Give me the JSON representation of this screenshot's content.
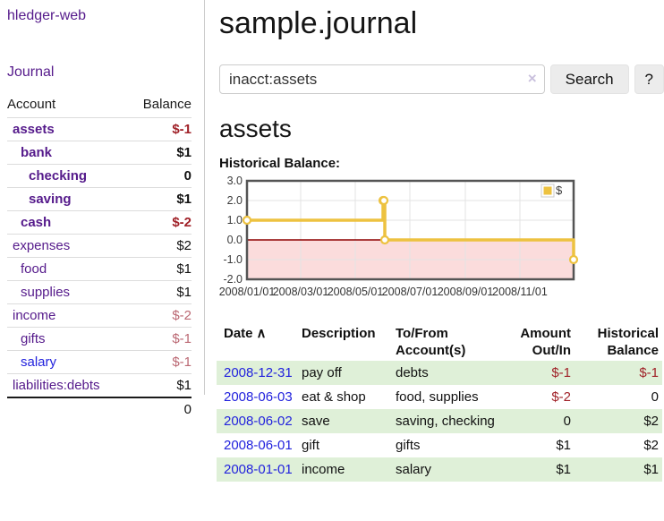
{
  "app": {
    "brand": "hledger-web",
    "nav": {
      "journal_label": "Journal"
    }
  },
  "sidebar": {
    "accounts_header": {
      "account": "Account",
      "balance": "Balance"
    },
    "accounts": [
      {
        "name": "assets",
        "depth": 0,
        "balance": "$-1",
        "bold": true,
        "balance_style": "strong-negative"
      },
      {
        "name": "bank",
        "depth": 1,
        "balance": "$1",
        "bold": true,
        "balance_style": "normal"
      },
      {
        "name": "checking",
        "depth": 2,
        "balance": "0",
        "bold": true,
        "balance_style": "normal"
      },
      {
        "name": "saving",
        "depth": 2,
        "balance": "$1",
        "bold": true,
        "balance_style": "normal"
      },
      {
        "name": "cash",
        "depth": 1,
        "balance": "$-2",
        "bold": true,
        "balance_style": "strong-negative"
      },
      {
        "name": "expenses",
        "depth": 0,
        "balance": "$2",
        "bold": false,
        "balance_style": "normal"
      },
      {
        "name": "food",
        "depth": 1,
        "balance": "$1",
        "bold": false,
        "balance_style": "normal"
      },
      {
        "name": "supplies",
        "depth": 1,
        "balance": "$1",
        "bold": false,
        "balance_style": "normal"
      },
      {
        "name": "income",
        "depth": 0,
        "balance": "$-2",
        "bold": false,
        "balance_style": "soft-negative"
      },
      {
        "name": "gifts",
        "depth": 1,
        "balance": "$-1",
        "bold": false,
        "balance_style": "soft-negative"
      },
      {
        "name": "salary",
        "depth": 1,
        "balance": "$-1",
        "bold": false,
        "balance_style": "soft-negative",
        "link_blue": true
      },
      {
        "name": "liabilities:debts",
        "depth": 0,
        "balance": "$1",
        "bold": false,
        "balance_style": "normal"
      }
    ],
    "total": "0"
  },
  "header": {
    "title": "sample.journal"
  },
  "search": {
    "value": "inacct:assets",
    "clear_icon": "×",
    "button_label": "Search",
    "help_label": "?"
  },
  "account_page": {
    "heading": "assets",
    "chart_heading": "Historical Balance:"
  },
  "chart_data": {
    "type": "line",
    "step": true,
    "title": "Historical Balance:",
    "ylim": [
      -2.0,
      3.0
    ],
    "y_ticks": [
      "3.0",
      "2.0",
      "1.0",
      "0.0",
      "-1.0",
      "-2.0"
    ],
    "y_tick_values": [
      3,
      2,
      1,
      0,
      -1,
      -2
    ],
    "x_ticks": [
      {
        "label": "2008/01/01",
        "day": 0
      },
      {
        "label": "2008/03/01",
        "day": 60
      },
      {
        "label": "2008/05/01",
        "day": 121
      },
      {
        "label": "2008/07/01",
        "day": 182
      },
      {
        "label": "2008/09/01",
        "day": 244
      },
      {
        "label": "2008/11/01",
        "day": 305
      }
    ],
    "days_total": 365,
    "grid": true,
    "legend": {
      "label": "$",
      "position": "top-right"
    },
    "series": [
      {
        "name": "$",
        "color": "#edc240",
        "points": [
          {
            "date": "2008/01/01",
            "day": 0,
            "value": 1
          },
          {
            "date": "2008/06/01",
            "day": 152,
            "value": 2
          },
          {
            "date": "2008/06/02",
            "day": 153,
            "value": 2
          },
          {
            "date": "2008/06/03",
            "day": 154,
            "value": 0
          },
          {
            "date": "2008/12/31",
            "day": 365,
            "value": -1
          }
        ]
      }
    ],
    "negative_region_fill": "#fbdcdc",
    "zero_line_color": "#8e0000",
    "gridline_color": "#e3e3e3",
    "plot_border_color": "#545454"
  },
  "register": {
    "columns": [
      {
        "line1": "Date",
        "line2": "",
        "align": "left",
        "sortable": true
      },
      {
        "line1": "Description",
        "line2": "",
        "align": "left"
      },
      {
        "line1": "To/From",
        "line2": "Account(s)",
        "align": "left"
      },
      {
        "line1": "Amount",
        "line2": "Out/In",
        "align": "right"
      },
      {
        "line1": "Historical",
        "line2": "Balance",
        "align": "right"
      }
    ],
    "sort_icon": "∧",
    "rows": [
      {
        "date": "2008-12-31",
        "description": "pay off",
        "accounts": "debts",
        "amount": "$-1",
        "amount_negative": true,
        "balance": "$-1",
        "balance_negative": true
      },
      {
        "date": "2008-06-03",
        "description": "eat & shop",
        "accounts": "food, supplies",
        "amount": "$-2",
        "amount_negative": true,
        "balance": "0",
        "balance_negative": false
      },
      {
        "date": "2008-06-02",
        "description": "save",
        "accounts": "saving, checking",
        "amount": "0",
        "amount_negative": false,
        "balance": "$2",
        "balance_negative": false
      },
      {
        "date": "2008-06-01",
        "description": "gift",
        "accounts": "gifts",
        "amount": "$1",
        "amount_negative": false,
        "balance": "$2",
        "balance_negative": false
      },
      {
        "date": "2008-01-01",
        "description": "income",
        "accounts": "salary",
        "amount": "$1",
        "amount_negative": false,
        "balance": "$1",
        "balance_negative": false
      }
    ]
  },
  "colors": {
    "link_purple": "#551A8B",
    "link_blue": "#2222dd",
    "negative_strong": "#a02128",
    "negative_soft": "#bb6873",
    "row_stripe_green": "#dff0d8",
    "series_gold": "#edc240"
  }
}
